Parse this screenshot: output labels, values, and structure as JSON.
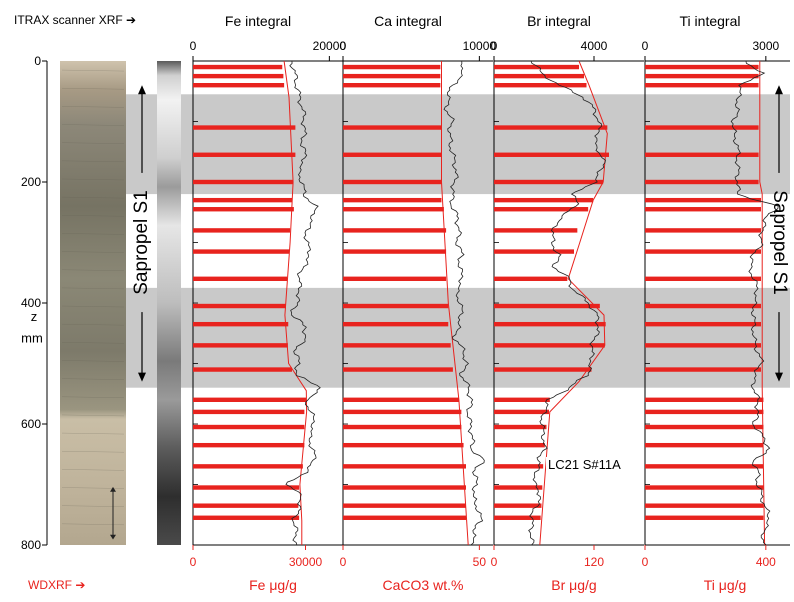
{
  "chart_data": {
    "type": "line",
    "top_axis_label": "ITRAX scanner XRF",
    "bottom_axis_label": "WDXRF",
    "depth_axis": {
      "label_line1": "z",
      "label_line2": "mm",
      "range": [
        0,
        800
      ],
      "ticks": [
        "0",
        "200",
        "400",
        "600",
        "800"
      ]
    },
    "sapropel_label": "Sapropel S1",
    "sapropel_bands_mm": [
      [
        55,
        220
      ],
      [
        375,
        540
      ]
    ],
    "core_id": "LC21 S#11A",
    "colors": {
      "wdxrf": "#e8231e",
      "itrax": "#222222",
      "band": "#c9c9c9",
      "model": "#e8231e"
    },
    "panels": [
      {
        "name": "Fe",
        "top_title": "Fe integral",
        "top_ticks": [
          "0",
          "20000"
        ],
        "top_range": [
          0,
          22000
        ],
        "bottom_title": "Fe μg/g",
        "bottom_ticks": [
          "0",
          "30000"
        ],
        "bottom_range": [
          0,
          40000
        ]
      },
      {
        "name": "Ca",
        "top_title": "Ca integral",
        "top_ticks": [
          "0",
          "10000"
        ],
        "top_range": [
          0,
          11000
        ],
        "bottom_title": "CaCO3 wt.%",
        "bottom_ticks": [
          "0",
          "50"
        ],
        "bottom_range": [
          0,
          55
        ]
      },
      {
        "name": "Br",
        "top_title": "Br integral",
        "top_ticks": [
          "0",
          "4000"
        ],
        "top_range": [
          0,
          6000
        ],
        "bottom_title": "Br μg/g",
        "bottom_ticks": [
          "0",
          "120"
        ],
        "bottom_range": [
          0,
          180
        ]
      },
      {
        "name": "Ti",
        "top_title": "Ti integral",
        "top_ticks": [
          "0",
          "3000"
        ],
        "top_range": [
          0,
          3600
        ],
        "bottom_title": "Ti μg/g",
        "bottom_ticks": [
          "0",
          "400"
        ],
        "bottom_range": [
          0,
          480
        ]
      }
    ],
    "wdxrf_depths_mm": [
      10,
      25,
      40,
      110,
      155,
      200,
      230,
      245,
      280,
      315,
      360,
      405,
      435,
      470,
      510,
      560,
      580,
      605,
      635,
      670,
      705,
      735,
      755
    ],
    "wdxrf_values": {
      "Fe": [
        23800,
        24100,
        24300,
        27300,
        27300,
        26800,
        26400,
        26900,
        25900,
        25700,
        25100,
        24800,
        25400,
        25300,
        26400,
        30200,
        29700,
        29700,
        29700,
        29300,
        28300,
        28100,
        28300
      ],
      "Ca": [
        35.7,
        35.7,
        35.7,
        36.1,
        36.1,
        36.1,
        36.1,
        37.0,
        37.8,
        37.8,
        37.8,
        38.6,
        38.6,
        39.5,
        40.3,
        42.5,
        43.4,
        43.4,
        44.2,
        45.1,
        45.1,
        45.1,
        45.1
      ],
      "Br": [
        102,
        108,
        111,
        136,
        138,
        131,
        119,
        113,
        100,
        96,
        88,
        127,
        134,
        133,
        117,
        67,
        66,
        63,
        61,
        59,
        58,
        57,
        56
      ],
      "Ti": [
        376,
        376,
        376,
        376,
        376,
        376,
        384,
        384,
        384,
        384,
        384,
        384,
        384,
        384,
        384,
        392,
        392,
        392,
        392,
        392,
        392,
        392,
        392
      ]
    },
    "model_line": {
      "Fe": {
        "depths": [
          0,
          60,
          200,
          300,
          420,
          500,
          545,
          580,
          700,
          760,
          800
        ],
        "values": [
          24300,
          25600,
          26700,
          25900,
          24500,
          25500,
          30200,
          30300,
          28500,
          29000,
          29000
        ]
      },
      "Ca": {
        "depths": [
          0,
          200,
          400,
          560,
          800
        ],
        "values": [
          36.1,
          36.1,
          38.6,
          42.5,
          45.9
        ]
      },
      "Br": {
        "depths": [
          0,
          40,
          120,
          200,
          230,
          300,
          360,
          420,
          470,
          530,
          580,
          800
        ],
        "values": [
          102,
          114,
          136,
          131,
          119,
          103,
          89,
          132,
          133,
          102,
          67,
          55
        ]
      },
      "Ti": {
        "depths": [
          0,
          200,
          220,
          540,
          800
        ],
        "values": [
          380,
          380,
          388,
          388,
          396
        ]
      }
    },
    "itrax_profiles": {
      "Fe": {
        "depths": [
          0,
          20,
          40,
          60,
          80,
          100,
          120,
          140,
          160,
          180,
          200,
          220,
          240,
          260,
          280,
          300,
          320,
          340,
          360,
          380,
          400,
          420,
          440,
          460,
          480,
          500,
          520,
          540,
          560,
          580,
          600,
          620,
          640,
          660,
          680,
          700,
          720,
          740,
          760,
          780,
          800
        ],
        "values": [
          14500,
          14900,
          15200,
          15600,
          16100,
          16300,
          16300,
          16000,
          16600,
          15400,
          16000,
          16300,
          17900,
          17600,
          16600,
          16700,
          17200,
          16200,
          15500,
          15700,
          15200,
          14500,
          16600,
          16300,
          15000,
          15500,
          15100,
          19000,
          16500,
          17300,
          17800,
          17000,
          17500,
          17900,
          16400,
          13800,
          16000,
          15500,
          14800,
          15100,
          15100
        ]
      },
      "Ca": {
        "depths": [
          0,
          20,
          40,
          60,
          80,
          100,
          120,
          140,
          160,
          180,
          200,
          220,
          240,
          260,
          280,
          300,
          320,
          340,
          360,
          380,
          400,
          420,
          440,
          460,
          480,
          500,
          520,
          540,
          560,
          580,
          600,
          620,
          640,
          660,
          680,
          700,
          720,
          740,
          760,
          780,
          800
        ],
        "values": [
          8500,
          8900,
          8000,
          7700,
          7600,
          8000,
          7800,
          7900,
          8100,
          8300,
          8200,
          8000,
          8000,
          8400,
          8500,
          8400,
          8700,
          8500,
          8800,
          8300,
          8600,
          8700,
          8400,
          8200,
          8900,
          9000,
          8700,
          9200,
          9400,
          9200,
          9300,
          9500,
          9400,
          10300,
          9600,
          9800,
          9500,
          9900,
          10100,
          9500,
          9600
        ]
      },
      "Br": {
        "depths": [
          0,
          20,
          40,
          60,
          80,
          100,
          120,
          140,
          160,
          180,
          200,
          220,
          240,
          260,
          280,
          300,
          320,
          340,
          360,
          380,
          400,
          420,
          440,
          460,
          480,
          500,
          520,
          540,
          560,
          580,
          600,
          620,
          640,
          660,
          680,
          700,
          720,
          740,
          760,
          780,
          800
        ],
        "values": [
          1500,
          1900,
          2600,
          3600,
          4000,
          4200,
          4200,
          4000,
          4400,
          4300,
          4000,
          3200,
          3300,
          2600,
          2400,
          2300,
          2600,
          2400,
          3000,
          3200,
          3800,
          4100,
          4200,
          4000,
          3900,
          3900,
          3700,
          3000,
          2200,
          2000,
          1900,
          2000,
          2000,
          1800,
          1700,
          1600,
          1900,
          1600,
          1500,
          1500,
          1500
        ]
      },
      "Ti": {
        "depths": [
          0,
          20,
          40,
          60,
          80,
          100,
          120,
          140,
          160,
          180,
          200,
          220,
          240,
          260,
          280,
          300,
          320,
          340,
          360,
          380,
          400,
          420,
          440,
          460,
          480,
          500,
          520,
          540,
          560,
          580,
          600,
          620,
          640,
          660,
          680,
          700,
          720,
          740,
          760,
          780,
          800
        ],
        "values": [
          2500,
          2900,
          2400,
          2300,
          2300,
          2200,
          2200,
          2300,
          2300,
          2300,
          2300,
          2300,
          3300,
          3000,
          2900,
          2900,
          2700,
          2600,
          2700,
          2800,
          2700,
          2700,
          2700,
          2700,
          2800,
          2900,
          2700,
          2700,
          2800,
          2800,
          2700,
          2900,
          3100,
          2700,
          2800,
          2800,
          2900,
          3000,
          3100,
          2900,
          3000
        ]
      }
    }
  }
}
